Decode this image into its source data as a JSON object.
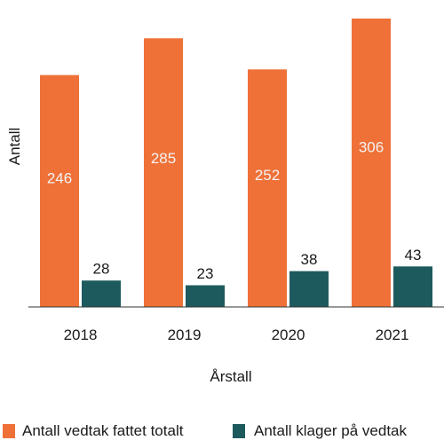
{
  "chart_data": {
    "type": "bar",
    "categories": [
      "2018",
      "2019",
      "2020",
      "2021"
    ],
    "series": [
      {
        "name": "Antall vedtak fattet totalt",
        "values": [
          246,
          285,
          252,
          306
        ],
        "color": "#ef7138"
      },
      {
        "name": "Antall klager på vedtak",
        "values": [
          28,
          23,
          38,
          43
        ],
        "color": "#1d5a5e"
      }
    ],
    "xlabel": "Årstall",
    "ylabel": "Antall",
    "ylim": [
      0,
      320
    ],
    "grid": false,
    "legend": "bottom"
  }
}
